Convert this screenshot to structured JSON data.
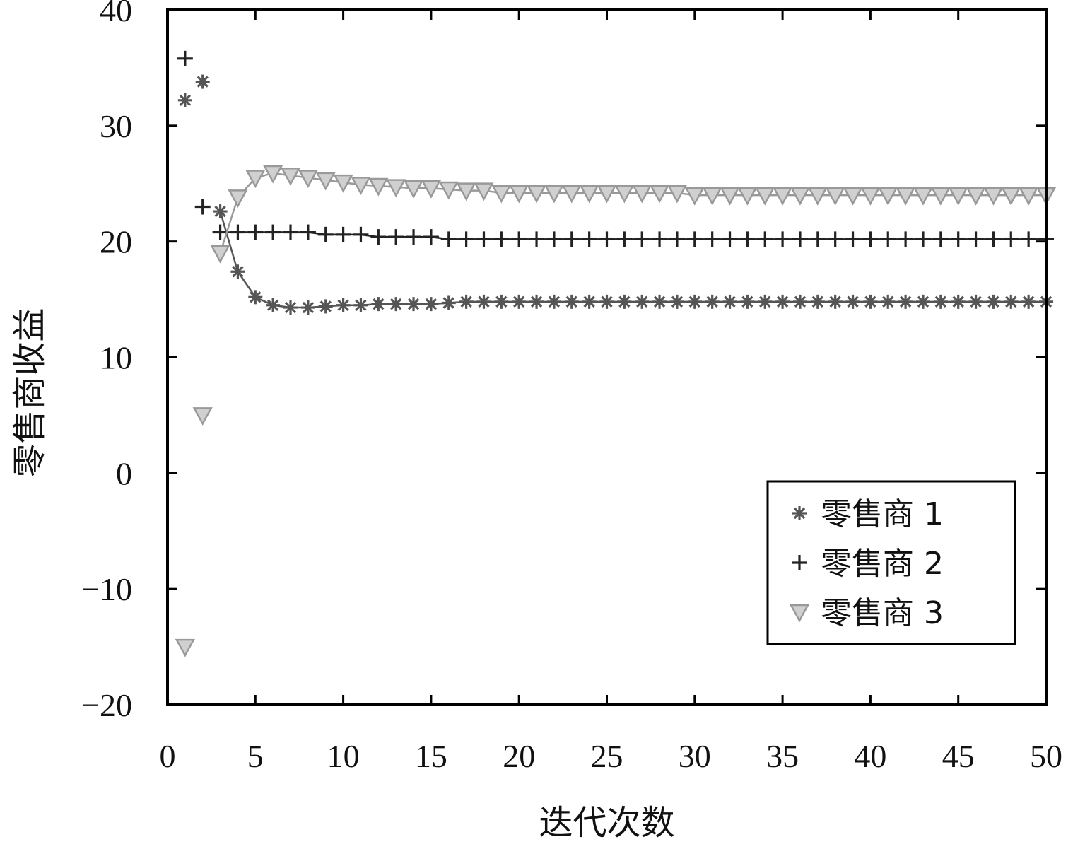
{
  "chart_data": {
    "type": "scatter",
    "title": "",
    "xlabel": "迭代次数",
    "ylabel": "零售商收益",
    "xlim": [
      0,
      50
    ],
    "ylim": [
      -20,
      40
    ],
    "xticks": [
      0,
      5,
      10,
      15,
      20,
      25,
      30,
      35,
      40,
      45,
      50
    ],
    "yticks": [
      -20,
      -10,
      0,
      10,
      20,
      30,
      40
    ],
    "xtick_labels": [
      "0",
      "5",
      "10",
      "15",
      "20",
      "25",
      "30",
      "35",
      "40",
      "45",
      "50"
    ],
    "ytick_labels": [
      "−20",
      "−10",
      "0",
      "10",
      "20",
      "30",
      "40"
    ],
    "grid": false,
    "legend_position": "lower-right",
    "x": [
      1,
      2,
      3,
      4,
      5,
      6,
      7,
      8,
      9,
      10,
      11,
      12,
      13,
      14,
      15,
      16,
      17,
      18,
      19,
      20,
      21,
      22,
      23,
      24,
      25,
      26,
      27,
      28,
      29,
      30,
      31,
      32,
      33,
      34,
      35,
      36,
      37,
      38,
      39,
      40,
      41,
      42,
      43,
      44,
      45,
      46,
      47,
      48,
      49,
      50
    ],
    "series": [
      {
        "name": "零售商  1",
        "marker": "asterisk",
        "color": "#555555",
        "values": [
          32.2,
          33.8,
          22.6,
          17.4,
          15.2,
          14.5,
          14.3,
          14.3,
          14.4,
          14.5,
          14.5,
          14.6,
          14.6,
          14.6,
          14.6,
          14.7,
          14.8,
          14.8,
          14.8,
          14.8,
          14.8,
          14.8,
          14.8,
          14.8,
          14.8,
          14.8,
          14.8,
          14.8,
          14.8,
          14.8,
          14.8,
          14.8,
          14.8,
          14.8,
          14.8,
          14.8,
          14.8,
          14.8,
          14.8,
          14.8,
          14.8,
          14.8,
          14.8,
          14.8,
          14.8,
          14.8,
          14.8,
          14.8,
          14.8,
          14.8
        ]
      },
      {
        "name": "零售商  2",
        "marker": "plus",
        "color": "#222222",
        "values": [
          35.8,
          23.0,
          20.8,
          20.8,
          20.8,
          20.8,
          20.8,
          20.8,
          20.6,
          20.6,
          20.6,
          20.4,
          20.4,
          20.4,
          20.4,
          20.2,
          20.2,
          20.2,
          20.2,
          20.2,
          20.2,
          20.2,
          20.2,
          20.2,
          20.2,
          20.2,
          20.2,
          20.2,
          20.2,
          20.2,
          20.2,
          20.2,
          20.2,
          20.2,
          20.2,
          20.2,
          20.2,
          20.2,
          20.2,
          20.2,
          20.2,
          20.2,
          20.2,
          20.2,
          20.2,
          20.2,
          20.2,
          20.2,
          20.2,
          20.2
        ]
      },
      {
        "name": "零售商  3",
        "marker": "triangle-down",
        "color": "#999999",
        "values": [
          -15.0,
          5.0,
          19.0,
          23.8,
          25.5,
          25.9,
          25.7,
          25.5,
          25.3,
          25.1,
          24.9,
          24.8,
          24.7,
          24.6,
          24.6,
          24.5,
          24.4,
          24.4,
          24.2,
          24.2,
          24.2,
          24.2,
          24.2,
          24.2,
          24.2,
          24.2,
          24.2,
          24.2,
          24.2,
          24.0,
          24.0,
          24.0,
          24.0,
          24.0,
          24.0,
          24.0,
          24.0,
          24.0,
          24.0,
          24.0,
          24.0,
          24.0,
          24.0,
          24.0,
          24.0,
          24.0,
          24.0,
          24.0,
          24.0,
          24.0
        ]
      }
    ]
  }
}
